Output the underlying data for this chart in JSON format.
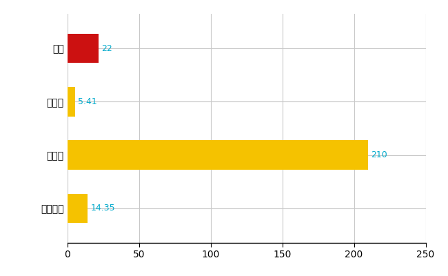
{
  "categories": [
    "西区",
    "県平均",
    "県最大",
    "全国平均"
  ],
  "values": [
    22,
    5.41,
    210,
    14.35
  ],
  "labels": [
    "22",
    "5.41",
    "210",
    "14.35"
  ],
  "bar_colors": [
    "#cc1111",
    "#f5c200",
    "#f5c200",
    "#f5c200"
  ],
  "xlim": [
    0,
    250
  ],
  "xticks": [
    0,
    50,
    100,
    150,
    200,
    250
  ],
  "background_color": "#ffffff",
  "grid_color": "#c8c8c8",
  "label_color": "#00aacc",
  "bar_height": 0.55,
  "figsize": [
    6.5,
    4.0
  ],
  "dpi": 100,
  "ytick_fontsize": 10,
  "xtick_fontsize": 10,
  "label_fontsize": 9
}
